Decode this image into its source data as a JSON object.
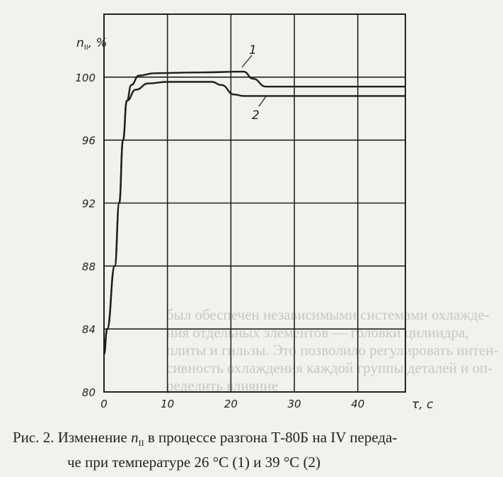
{
  "chart_data": {
    "type": "line",
    "title": "",
    "xlabel": "τ, с",
    "ylabel": "n_II, %",
    "ylabel_parts": {
      "symbol": "n",
      "subscript": "II",
      "unit": ", %"
    },
    "xlim": [
      0,
      47.5
    ],
    "ylim": [
      80,
      104
    ],
    "xticks": [
      0,
      10,
      20,
      30,
      40
    ],
    "yticks": [
      80,
      84,
      88,
      92,
      96,
      100
    ],
    "grid": true,
    "line_color": "#1e1e1e",
    "series": [
      {
        "name": "1",
        "x": [
          0,
          0.5,
          1.7,
          2.4,
          3.0,
          3.6,
          4.3,
          5.5,
          8,
          15,
          22,
          23.5,
          25.5,
          30,
          47.5
        ],
        "y": [
          82.4,
          84,
          88,
          92,
          96,
          98.5,
          99.5,
          100.1,
          100.25,
          100.3,
          100.35,
          99.9,
          99.4,
          99.4,
          99.4
        ]
      },
      {
        "name": "2",
        "x": [
          0,
          0.5,
          1.7,
          2.4,
          3.0,
          3.6,
          5,
          7,
          10,
          17,
          18.5,
          20.5,
          22,
          47.5
        ],
        "y": [
          82.4,
          84,
          88,
          92,
          96,
          98.5,
          99.2,
          99.6,
          99.7,
          99.7,
          99.5,
          98.9,
          98.8,
          98.8
        ]
      }
    ]
  },
  "caption": {
    "line1_prefix": "Рис. 2. Изменение ",
    "symbol": "n",
    "subscript": "II",
    "line1_suffix": " в процессе разгона Т-80Б на IV переда-",
    "line2": "че при температуре 26 °С (1) и 39 °С (2)"
  },
  "bleed_through_text": [
    "был обеспечен независимыми системами охлажде-",
    "ния отдельных элементов — головки цилиндра,",
    "плиты и гильзы. Это позволило регулировать интен-",
    "сивность охлаждения каждой группы деталей и оп-",
    "ределить влияние"
  ]
}
